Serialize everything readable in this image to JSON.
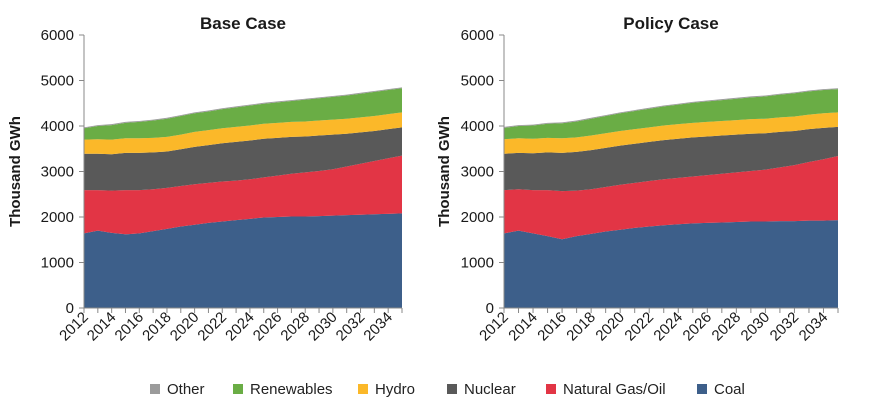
{
  "chart_data": [
    {
      "type": "area",
      "stacked": true,
      "title": "Base Case",
      "ylabel": "Thousand GWh",
      "xlabel": "",
      "ylim": [
        0,
        6000
      ],
      "yticks": [
        0,
        1000,
        2000,
        3000,
        4000,
        5000,
        6000
      ],
      "x": [
        2012,
        2013,
        2014,
        2015,
        2016,
        2017,
        2018,
        2019,
        2020,
        2021,
        2022,
        2023,
        2024,
        2025,
        2026,
        2027,
        2028,
        2029,
        2030,
        2031,
        2032,
        2033,
        2034,
        2035
      ],
      "xtick_labels": [
        "2012",
        "2014",
        "2016",
        "2018",
        "2020",
        "2022",
        "2024",
        "2026",
        "2028",
        "2030",
        "2032",
        "2034"
      ],
      "series": [
        {
          "name": "Coal",
          "color": "#3d5f8a",
          "values": [
            1640,
            1700,
            1650,
            1620,
            1640,
            1690,
            1740,
            1790,
            1830,
            1870,
            1900,
            1930,
            1960,
            1990,
            2000,
            2010,
            2010,
            2020,
            2030,
            2040,
            2050,
            2060,
            2070,
            2080
          ]
        },
        {
          "name": "Natural Gas/Oil",
          "color": "#e23545",
          "values": [
            950,
            890,
            930,
            970,
            950,
            920,
            900,
            890,
            890,
            880,
            880,
            870,
            870,
            880,
            910,
            940,
            970,
            990,
            1020,
            1070,
            1120,
            1170,
            1220,
            1270
          ]
        },
        {
          "name": "Nuclear",
          "color": "#595959",
          "values": [
            800,
            800,
            800,
            820,
            820,
            810,
            800,
            810,
            820,
            830,
            840,
            850,
            850,
            850,
            830,
            810,
            790,
            780,
            760,
            720,
            690,
            660,
            640,
            620
          ]
        },
        {
          "name": "Hydro",
          "color": "#fbb829",
          "values": [
            310,
            320,
            320,
            320,
            320,
            320,
            320,
            320,
            330,
            330,
            330,
            330,
            330,
            330,
            330,
            330,
            330,
            330,
            330,
            330,
            330,
            330,
            330,
            330
          ]
        },
        {
          "name": "Renewables",
          "color": "#6aad45",
          "values": [
            250,
            290,
            320,
            340,
            360,
            380,
            400,
            410,
            410,
            410,
            420,
            430,
            440,
            440,
            450,
            460,
            480,
            490,
            500,
            510,
            520,
            530,
            530,
            530
          ]
        },
        {
          "name": "Other",
          "color": "#9b9b9b",
          "values": [
            20,
            20,
            20,
            20,
            20,
            20,
            20,
            20,
            20,
            20,
            20,
            20,
            20,
            20,
            20,
            20,
            20,
            20,
            20,
            20,
            20,
            20,
            20,
            20
          ]
        }
      ]
    },
    {
      "type": "area",
      "stacked": true,
      "title": "Policy Case",
      "ylabel": "Thousand GWh",
      "xlabel": "",
      "ylim": [
        0,
        6000
      ],
      "yticks": [
        0,
        1000,
        2000,
        3000,
        4000,
        5000,
        6000
      ],
      "x": [
        2012,
        2013,
        2014,
        2015,
        2016,
        2017,
        2018,
        2019,
        2020,
        2021,
        2022,
        2023,
        2024,
        2025,
        2026,
        2027,
        2028,
        2029,
        2030,
        2031,
        2032,
        2033,
        2034,
        2035
      ],
      "xtick_labels": [
        "2012",
        "2014",
        "2016",
        "2018",
        "2020",
        "2022",
        "2024",
        "2026",
        "2028",
        "2030",
        "2032",
        "2034"
      ],
      "series": [
        {
          "name": "Coal",
          "color": "#3d5f8a",
          "values": [
            1640,
            1700,
            1640,
            1580,
            1510,
            1580,
            1630,
            1680,
            1720,
            1760,
            1790,
            1820,
            1840,
            1860,
            1870,
            1880,
            1890,
            1900,
            1900,
            1910,
            1910,
            1920,
            1920,
            1930
          ]
        },
        {
          "name": "Natural Gas/Oil",
          "color": "#e23545",
          "values": [
            950,
            910,
            950,
            1010,
            1060,
            1000,
            980,
            980,
            990,
            990,
            1000,
            1010,
            1020,
            1030,
            1050,
            1070,
            1090,
            1110,
            1140,
            1180,
            1230,
            1290,
            1350,
            1410
          ]
        },
        {
          "name": "Nuclear",
          "color": "#595959",
          "values": [
            800,
            800,
            810,
            830,
            840,
            850,
            860,
            860,
            860,
            860,
            860,
            860,
            860,
            860,
            850,
            840,
            830,
            820,
            800,
            780,
            750,
            720,
            690,
            640
          ]
        },
        {
          "name": "Hydro",
          "color": "#fbb829",
          "values": [
            320,
            320,
            320,
            320,
            320,
            320,
            320,
            320,
            320,
            320,
            320,
            320,
            320,
            320,
            320,
            320,
            320,
            320,
            320,
            320,
            320,
            320,
            320,
            320
          ]
        },
        {
          "name": "Renewables",
          "color": "#6aad45",
          "values": [
            250,
            270,
            290,
            310,
            330,
            350,
            370,
            380,
            390,
            400,
            410,
            420,
            430,
            440,
            450,
            460,
            470,
            480,
            490,
            500,
            510,
            510,
            510,
            510
          ]
        },
        {
          "name": "Other",
          "color": "#9b9b9b",
          "values": [
            20,
            20,
            20,
            20,
            20,
            20,
            20,
            20,
            20,
            20,
            20,
            20,
            20,
            20,
            20,
            20,
            20,
            20,
            20,
            20,
            20,
            20,
            20,
            20
          ]
        }
      ]
    }
  ],
  "legend": [
    {
      "label": "Other",
      "color": "#9b9b9b"
    },
    {
      "label": "Renewables",
      "color": "#6aad45"
    },
    {
      "label": "Hydro",
      "color": "#fbb829"
    },
    {
      "label": "Nuclear",
      "color": "#595959"
    },
    {
      "label": "Natural Gas/Oil",
      "color": "#e23545"
    },
    {
      "label": "Coal",
      "color": "#3d5f8a"
    }
  ]
}
